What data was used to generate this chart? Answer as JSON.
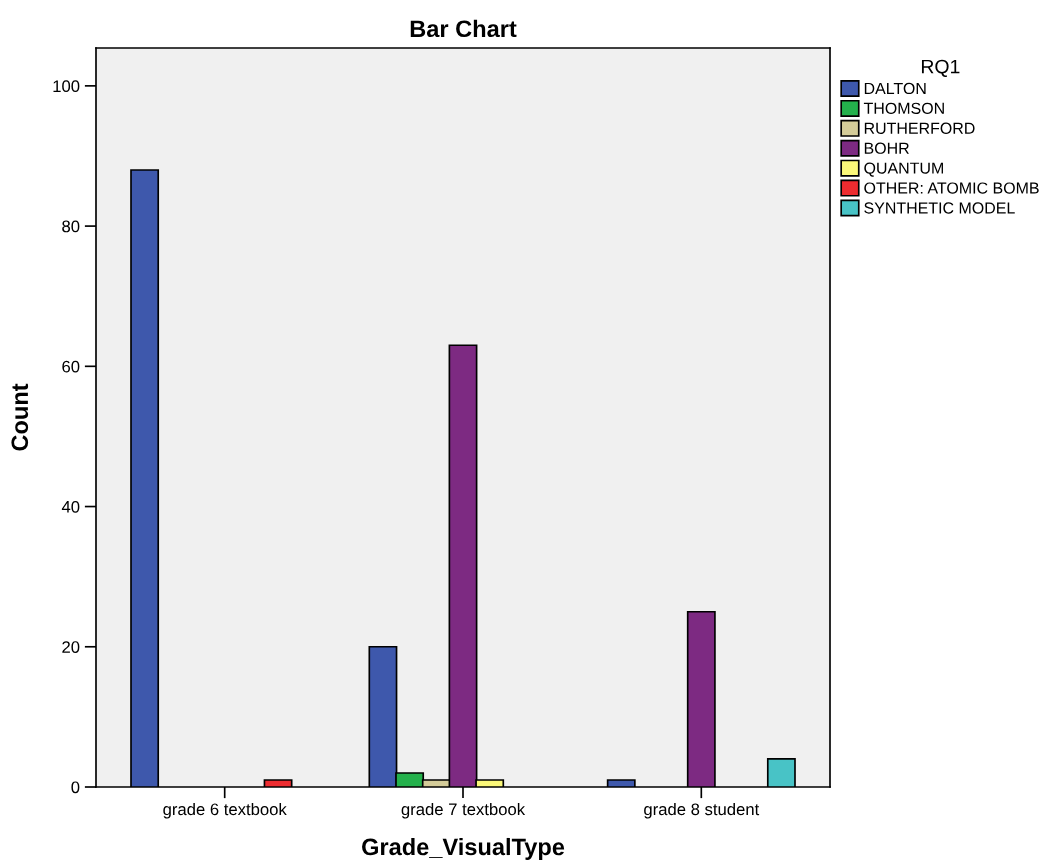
{
  "chart_data": {
    "type": "bar",
    "title": "Bar Chart",
    "xlabel": "Grade_VisualType",
    "ylabel": "Count",
    "legend_title": "RQ1",
    "categories": [
      "grade 6 textbook",
      "grade 7 textbook",
      "grade 8 student"
    ],
    "series": [
      {
        "name": "DALTON",
        "color": "#3e58ac",
        "values": [
          88,
          20,
          1
        ]
      },
      {
        "name": "THOMSON",
        "color": "#24b14c",
        "values": [
          null,
          2,
          null
        ]
      },
      {
        "name": "RUTHERFORD",
        "color": "#d4cc99",
        "values": [
          null,
          1,
          null
        ]
      },
      {
        "name": "BOHR",
        "color": "#7d2a82",
        "values": [
          null,
          63,
          25
        ]
      },
      {
        "name": "QUANTUM",
        "color": "#fbf879",
        "values": [
          null,
          1,
          null
        ]
      },
      {
        "name": "OTHER: ATOMIC BOMB",
        "color": "#ed2c30",
        "values": [
          1,
          null,
          null
        ]
      },
      {
        "name": "SYNTHETIC MODEL",
        "color": "#48c3c6",
        "values": [
          null,
          null,
          4
        ]
      }
    ],
    "ylim": [
      0,
      105.4
    ],
    "yticks": [
      0,
      20,
      40,
      60,
      80,
      100
    ],
    "grid": false,
    "legend": "right"
  }
}
